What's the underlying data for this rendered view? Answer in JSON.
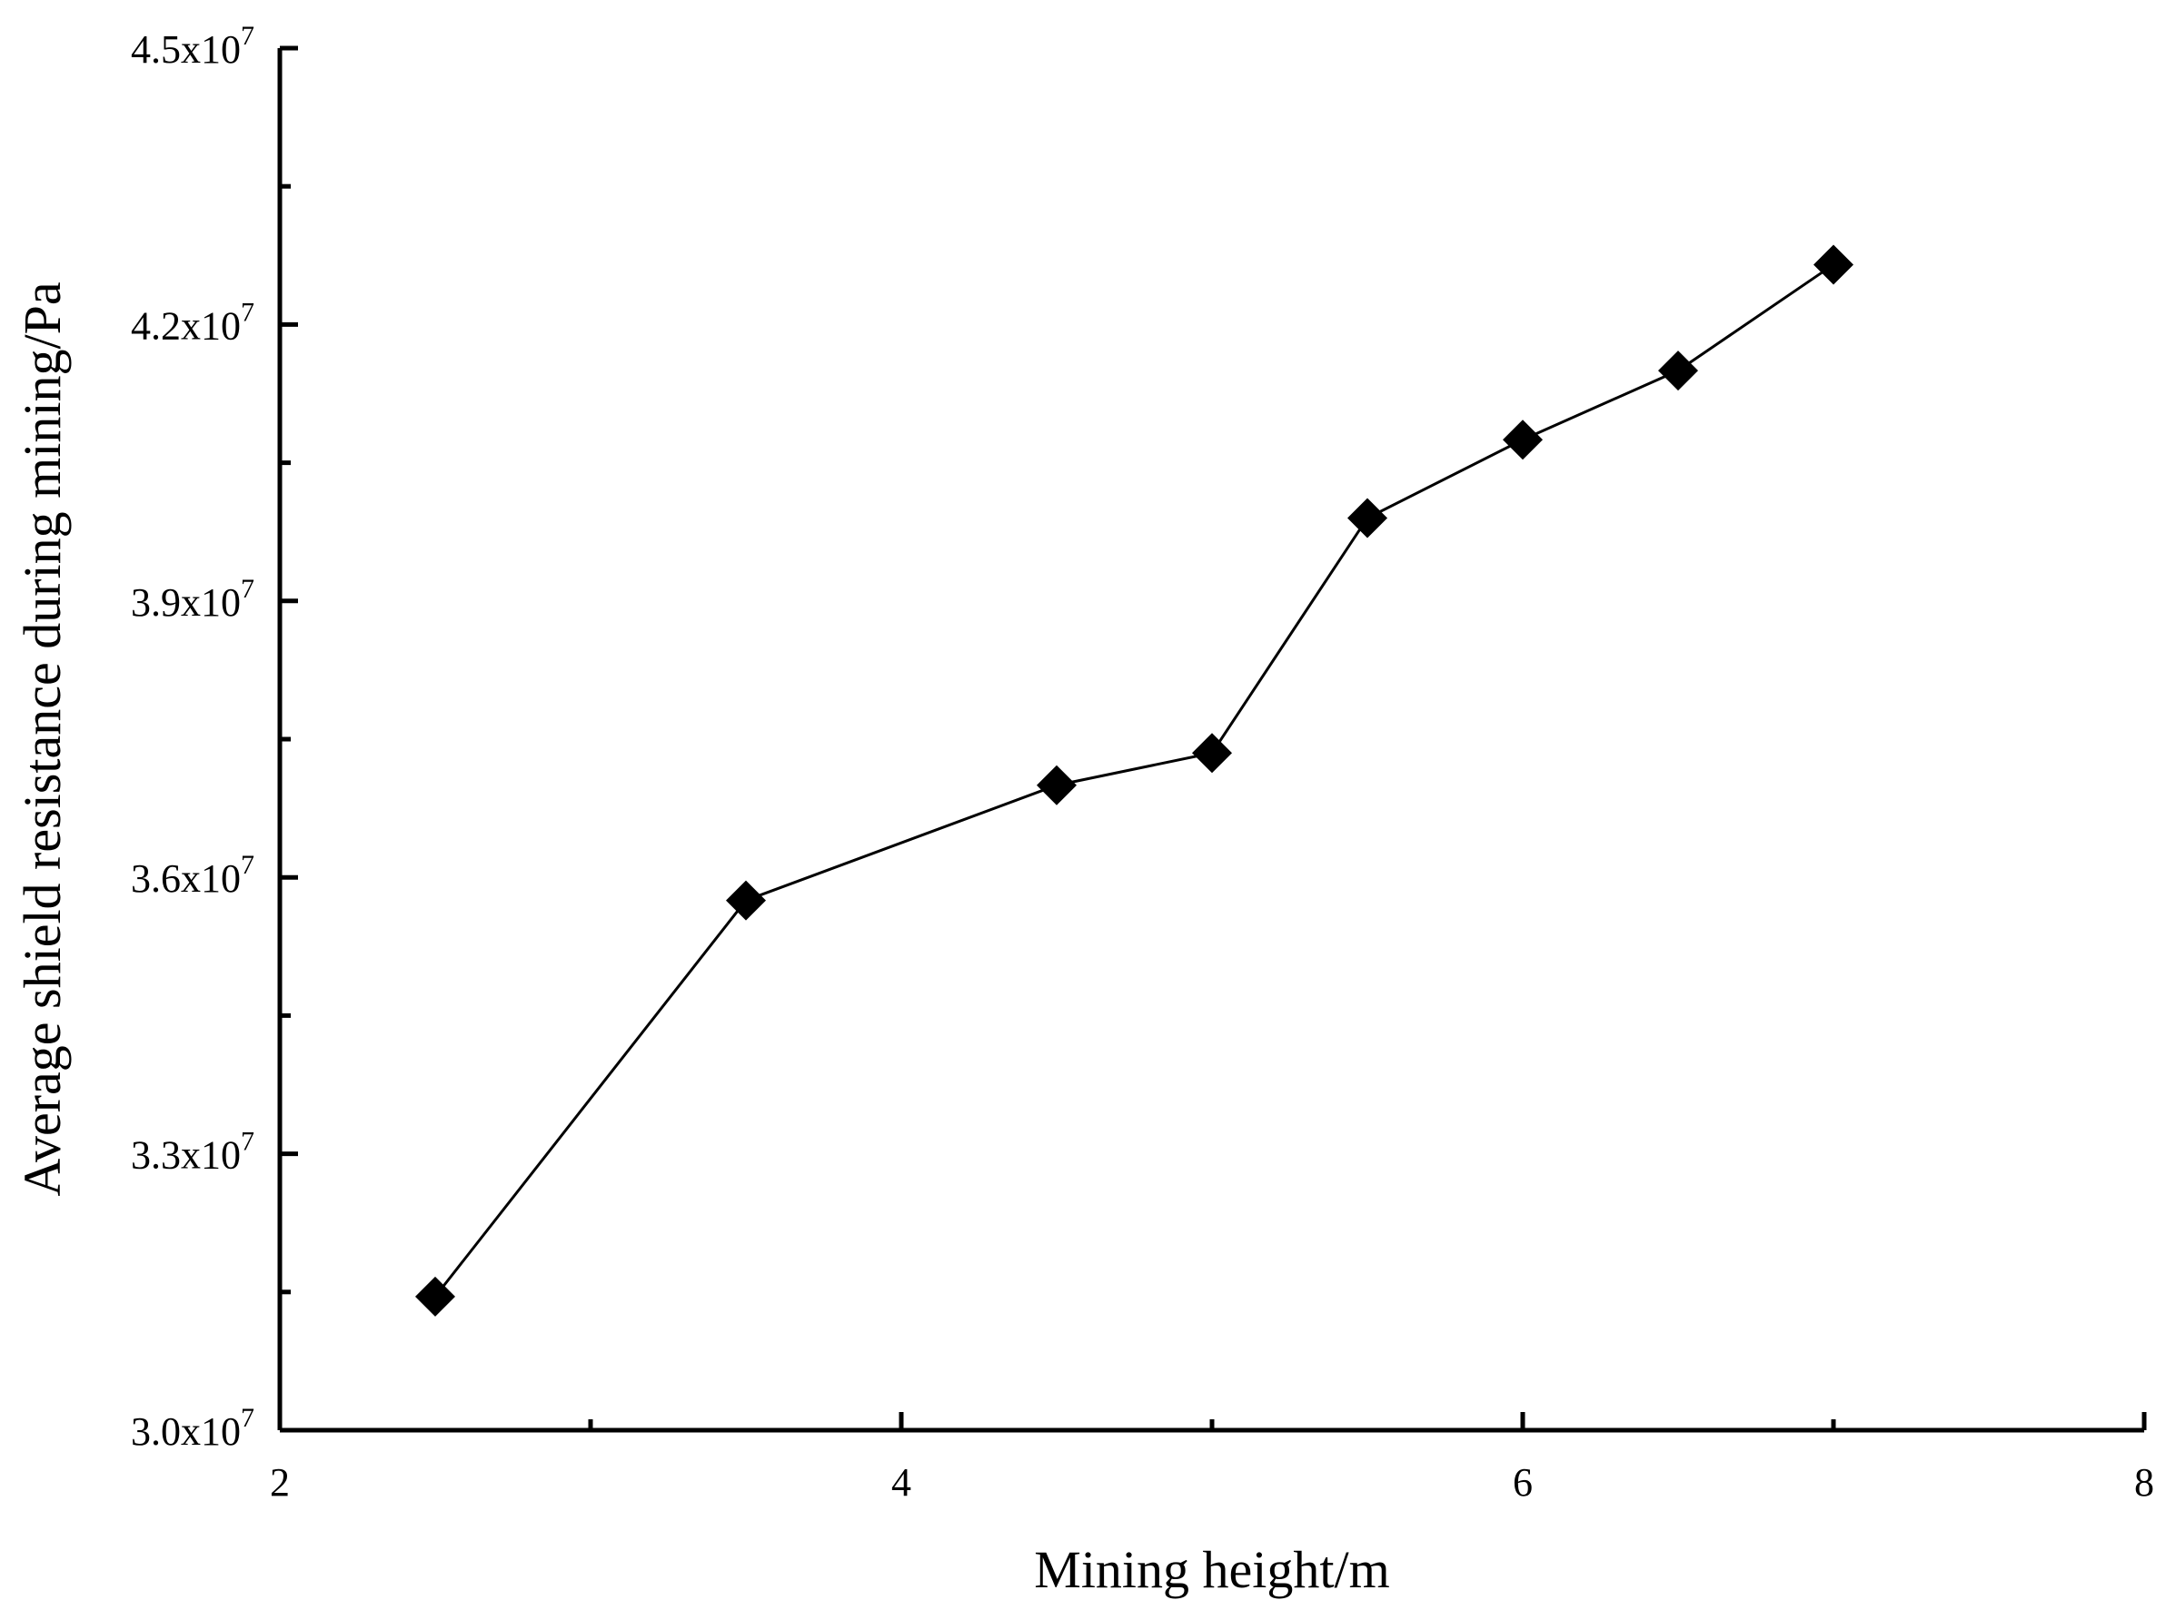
{
  "chart_data": {
    "type": "line",
    "xlabel": "Mining height/m",
    "ylabel": "Average shield resistance during mining/Pa",
    "xlim": [
      2,
      8
    ],
    "ylim": [
      30000000,
      45000000
    ],
    "x_ticks": [
      2,
      4,
      6,
      8
    ],
    "x_minor_ticks": [
      3,
      5,
      7
    ],
    "x_tick_labels": [
      "2",
      "4",
      "6",
      "8"
    ],
    "y_ticks": [
      30000000,
      33000000,
      36000000,
      39000000,
      42000000,
      45000000
    ],
    "y_minor_ticks": [
      31500000,
      34500000,
      37500000,
      40500000,
      43500000
    ],
    "y_tick_labels": [
      {
        "mantissa": "3.0x10",
        "exp": "7"
      },
      {
        "mantissa": "3.3x10",
        "exp": "7"
      },
      {
        "mantissa": "3.6x10",
        "exp": "7"
      },
      {
        "mantissa": "3.9x10",
        "exp": "7"
      },
      {
        "mantissa": "4.2x10",
        "exp": "7"
      },
      {
        "mantissa": "4.5x10",
        "exp": "7"
      }
    ],
    "grid": false,
    "marker": "diamond",
    "series": [
      {
        "x": [
          2.5,
          3.5,
          4.5,
          5.0,
          5.5,
          6.0,
          6.5,
          7.0
        ],
        "y": [
          31450000,
          35750000,
          37000000,
          37350000,
          39900000,
          40750000,
          41500000,
          42650000
        ]
      }
    ]
  },
  "colors": {
    "line": "#000000",
    "marker": "#000000",
    "background": "#ffffff"
  }
}
